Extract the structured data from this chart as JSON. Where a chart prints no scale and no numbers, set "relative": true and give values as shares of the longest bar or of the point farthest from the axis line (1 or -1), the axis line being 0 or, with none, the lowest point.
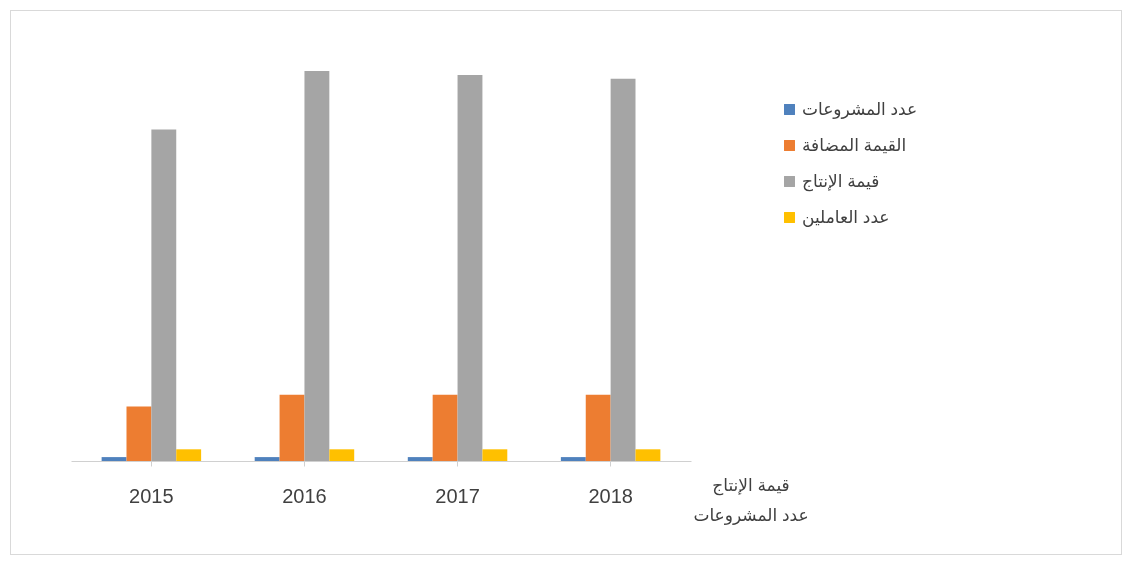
{
  "chart_data": {
    "type": "bar",
    "relative": true,
    "categories": [
      "2015",
      "2016",
      "2017",
      "2018"
    ],
    "series": [
      {
        "name": "عدد المشروعات",
        "color": "#4f81bd",
        "values": [
          0.01,
          0.01,
          0.01,
          0.01
        ]
      },
      {
        "name": "القيمة المضافة",
        "color": "#ed7d31",
        "values": [
          0.14,
          0.17,
          0.17,
          0.17
        ]
      },
      {
        "name": "قيمة الإنتاج",
        "color": "#a5a5a5",
        "values": [
          0.85,
          1,
          0.99,
          0.98
        ]
      },
      {
        "name": "عدد العاملين",
        "color": "#ffc000",
        "values": [
          0.03,
          0.03,
          0.03,
          0.03
        ]
      }
    ],
    "annotations": [
      "قيمة الإنتاج",
      "عدد المشروعات"
    ],
    "legend": "right",
    "grid": false
  }
}
